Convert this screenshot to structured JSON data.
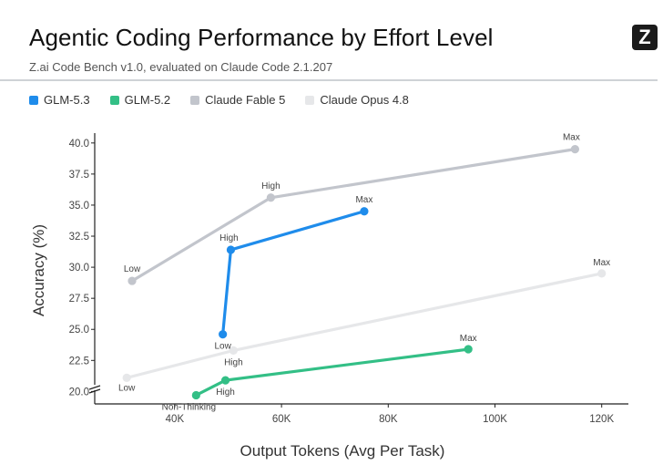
{
  "header": {
    "title": "Agentic Coding Performance by Effort Level",
    "subtitle": "Z.ai Code Bench v1.0, evaluated on Claude Code 2.1.207",
    "logo_letter": "Z"
  },
  "chart_data": {
    "type": "line",
    "title": "Agentic Coding Performance by Effort Level",
    "subtitle": "Z.ai Code Bench v1.0, evaluated on Claude Code 2.1.207",
    "xlabel": "Output Tokens (Avg Per Task)",
    "ylabel": "Accuracy (%)",
    "xlim": [
      25000,
      125000
    ],
    "ylim": [
      19.0,
      40.5
    ],
    "xticks": [
      40000,
      60000,
      80000,
      100000,
      120000
    ],
    "xtick_labels": [
      "40K",
      "60K",
      "80K",
      "100K",
      "120K"
    ],
    "yticks": [
      20.0,
      22.5,
      25.0,
      27.5,
      30.0,
      32.5,
      35.0,
      37.5,
      40.0
    ],
    "ytick_labels": [
      "20.0",
      "22.5",
      "25.0",
      "27.5",
      "30.0",
      "32.5",
      "35.0",
      "37.5",
      "40.0"
    ],
    "axis_break": true,
    "grid": false,
    "legend_position": "top-left",
    "series": [
      {
        "name": "Claude Opus 4.8",
        "color": "#e6e7e9",
        "points": [
          {
            "x": 31000,
            "y": 21.1,
            "label": "Low"
          },
          {
            "x": 51000,
            "y": 23.3,
            "label": "High"
          },
          {
            "x": 120000,
            "y": 29.5,
            "label": "Max"
          }
        ]
      },
      {
        "name": "Claude Fable 5",
        "color": "#c2c5cc",
        "points": [
          {
            "x": 32000,
            "y": 28.9,
            "label": "Low"
          },
          {
            "x": 58000,
            "y": 35.6,
            "label": "High"
          },
          {
            "x": 115000,
            "y": 39.5,
            "label": "Max"
          }
        ]
      },
      {
        "name": "GLM-5.2",
        "color": "#33bf86",
        "points": [
          {
            "x": 44000,
            "y": 19.7,
            "label": "Non-Thinking"
          },
          {
            "x": 49500,
            "y": 20.9,
            "label": "High"
          },
          {
            "x": 95000,
            "y": 23.4,
            "label": "Max"
          }
        ]
      },
      {
        "name": "GLM-5.3",
        "color": "#1f8ceb",
        "points": [
          {
            "x": 49000,
            "y": 24.6,
            "label": "Low"
          },
          {
            "x": 50500,
            "y": 31.4,
            "label": "High"
          },
          {
            "x": 75500,
            "y": 34.5,
            "label": "Max"
          }
        ]
      }
    ]
  },
  "legend_order": [
    "GLM-5.3",
    "GLM-5.2",
    "Claude Fable 5",
    "Claude Opus 4.8"
  ]
}
